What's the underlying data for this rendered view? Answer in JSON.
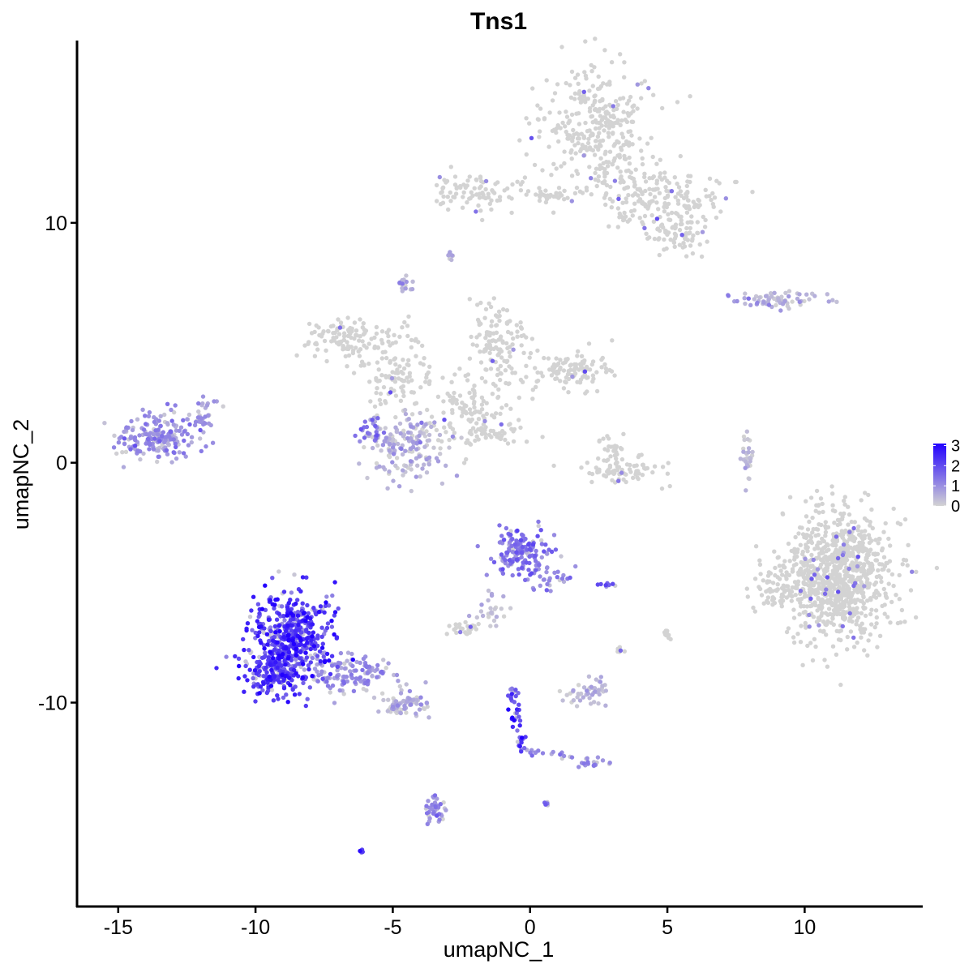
{
  "chart_data": {
    "type": "scatter",
    "title": "Tns1",
    "xlabel": "umapNC_1",
    "ylabel": "umapNC_2",
    "xlim": [
      -16.5,
      14.3
    ],
    "ylim": [
      -18.5,
      17.6
    ],
    "x_ticks": [
      -15,
      -10,
      -5,
      0,
      5,
      10
    ],
    "x_tick_labels": [
      "-15",
      "-10",
      "-5",
      "0",
      "5",
      "10"
    ],
    "y_ticks": [
      -10,
      0,
      10
    ],
    "y_tick_labels": [
      "-10",
      "0",
      "10"
    ],
    "grid": false,
    "color_scale": {
      "low_color": "#d3d3d3",
      "high_color": "#2200ff",
      "min": 0,
      "max": 3.1,
      "ticks": [
        0,
        1,
        2,
        3
      ],
      "tick_labels": [
        "0",
        "1",
        "2",
        "3"
      ],
      "legend_position": "right"
    },
    "clusters": [
      {
        "cx": 2.5,
        "cy": 14.0,
        "sx": 1.2,
        "sy": 1.6,
        "n": 320,
        "expr": 0.05
      },
      {
        "cx": 4.5,
        "cy": 11.0,
        "sx": 1.4,
        "sy": 0.8,
        "n": 200,
        "expr": 0.05
      },
      {
        "cx": 5.5,
        "cy": 9.5,
        "sx": 0.6,
        "sy": 0.4,
        "n": 60,
        "expr": 0.05
      },
      {
        "cx": -2.0,
        "cy": 11.3,
        "sx": 0.9,
        "sy": 0.45,
        "n": 90,
        "expr": 0.02
      },
      {
        "cx": 0.8,
        "cy": 11.1,
        "sx": 0.7,
        "sy": 0.2,
        "n": 30,
        "expr": 0.02
      },
      {
        "cx": 8.8,
        "cy": 6.8,
        "sx": 1.0,
        "sy": 0.2,
        "n": 70,
        "expr": 0.5
      },
      {
        "cx": -4.6,
        "cy": 7.4,
        "sx": 0.15,
        "sy": 0.2,
        "n": 15,
        "expr": 0.6
      },
      {
        "cx": -2.9,
        "cy": 8.7,
        "sx": 0.1,
        "sy": 0.1,
        "n": 8,
        "expr": 0.4
      },
      {
        "cx": -6.6,
        "cy": 5.2,
        "sx": 0.9,
        "sy": 0.5,
        "n": 120,
        "expr": 0.05
      },
      {
        "cx": -5.0,
        "cy": 3.5,
        "sx": 0.9,
        "sy": 0.7,
        "n": 80,
        "expr": 0.08
      },
      {
        "cx": -1.2,
        "cy": 5.0,
        "sx": 0.7,
        "sy": 1.0,
        "n": 120,
        "expr": 0.03
      },
      {
        "cx": 1.5,
        "cy": 3.8,
        "sx": 0.9,
        "sy": 0.5,
        "n": 110,
        "expr": 0.05
      },
      {
        "cx": -2.3,
        "cy": 2.3,
        "sx": 1.2,
        "sy": 1.0,
        "n": 100,
        "expr": 0.06
      },
      {
        "cx": -4.5,
        "cy": 0.7,
        "sx": 0.9,
        "sy": 0.9,
        "n": 170,
        "expr": 0.45
      },
      {
        "cx": -5.8,
        "cy": 1.2,
        "sx": 0.3,
        "sy": 0.3,
        "n": 25,
        "expr": 1.4
      },
      {
        "cx": -1.2,
        "cy": 1.3,
        "sx": 0.9,
        "sy": 0.25,
        "n": 30,
        "expr": 0.02
      },
      {
        "cx": -13.6,
        "cy": 1.0,
        "sx": 0.9,
        "sy": 0.6,
        "n": 200,
        "expr": 1.0
      },
      {
        "cx": -11.8,
        "cy": 2.0,
        "sx": 0.3,
        "sy": 0.5,
        "n": 30,
        "expr": 0.8
      },
      {
        "cx": 3.3,
        "cy": -0.3,
        "sx": 0.9,
        "sy": 0.35,
        "n": 80,
        "expr": 0.05
      },
      {
        "cx": 3.0,
        "cy": 0.7,
        "sx": 0.25,
        "sy": 0.35,
        "n": 20,
        "expr": 0.05
      },
      {
        "cx": 7.9,
        "cy": 0.3,
        "sx": 0.15,
        "sy": 0.55,
        "n": 30,
        "expr": 0.3
      },
      {
        "cx": 11.2,
        "cy": -4.7,
        "sx": 1.2,
        "sy": 1.5,
        "n": 950,
        "expr": 0.03
      },
      {
        "cx": 8.8,
        "cy": -5.3,
        "sx": 0.5,
        "sy": 0.5,
        "n": 40,
        "expr": 0.03
      },
      {
        "cx": -0.4,
        "cy": -3.7,
        "sx": 0.55,
        "sy": 0.55,
        "n": 140,
        "expr": 1.3
      },
      {
        "cx": 0.6,
        "cy": -4.6,
        "sx": 0.5,
        "sy": 0.5,
        "n": 40,
        "expr": 1.1
      },
      {
        "cx": -1.5,
        "cy": -6.1,
        "sx": 0.3,
        "sy": 0.4,
        "n": 25,
        "expr": 0.3
      },
      {
        "cx": -2.4,
        "cy": -6.9,
        "sx": 0.3,
        "sy": 0.15,
        "n": 25,
        "expr": 0.1
      },
      {
        "cx": 2.8,
        "cy": -5.1,
        "sx": 0.2,
        "sy": 0.08,
        "n": 8,
        "expr": 1.6
      },
      {
        "cx": -8.7,
        "cy": -7.2,
        "sx": 0.8,
        "sy": 1.0,
        "n": 450,
        "expr": 2.2
      },
      {
        "cx": -9.3,
        "cy": -8.8,
        "sx": 0.7,
        "sy": 0.6,
        "n": 200,
        "expr": 2.1
      },
      {
        "cx": -6.5,
        "cy": -8.9,
        "sx": 0.9,
        "sy": 0.5,
        "n": 130,
        "expr": 0.9
      },
      {
        "cx": -4.6,
        "cy": -10.1,
        "sx": 0.6,
        "sy": 0.3,
        "n": 70,
        "expr": 0.5
      },
      {
        "cx": 2.2,
        "cy": -9.6,
        "sx": 0.45,
        "sy": 0.3,
        "n": 50,
        "expr": 0.3
      },
      {
        "cx": 5.0,
        "cy": -7.2,
        "sx": 0.1,
        "sy": 0.2,
        "n": 10,
        "expr": 0.05
      },
      {
        "cx": 3.3,
        "cy": -7.8,
        "sx": 0.1,
        "sy": 0.15,
        "n": 6,
        "expr": 0.05
      },
      {
        "cx": 2.3,
        "cy": -12.5,
        "sx": 0.3,
        "sy": 0.15,
        "n": 20,
        "expr": 1.0
      },
      {
        "cx": -3.5,
        "cy": -14.6,
        "sx": 0.25,
        "sy": 0.45,
        "n": 40,
        "expr": 1.1
      },
      {
        "cx": -6.1,
        "cy": -16.2,
        "sx": 0.06,
        "sy": 0.05,
        "n": 6,
        "expr": 2.0
      },
      {
        "cx": 0.6,
        "cy": -14.2,
        "sx": 0.05,
        "sy": 0.05,
        "n": 5,
        "expr": 1.5
      }
    ],
    "paths": [
      {
        "from": [
          -0.7,
          -9.3
        ],
        "to": [
          -0.3,
          -12.0
        ],
        "n": 40,
        "expr": 2.0,
        "jitter": 0.1
      },
      {
        "from": [
          -0.3,
          -12.0
        ],
        "to": [
          1.5,
          -12.2
        ],
        "n": 18,
        "expr": 1.2,
        "jitter": 0.08
      },
      {
        "from": [
          -3.0,
          2.8
        ],
        "to": [
          -0.8,
          0.8
        ],
        "n": 30,
        "expr": 0.05,
        "jitter": 0.12
      },
      {
        "from": [
          -4.5,
          6.0
        ],
        "to": [
          -3.5,
          3.0
        ],
        "n": 20,
        "expr": 0.05,
        "jitter": 0.15
      }
    ]
  }
}
